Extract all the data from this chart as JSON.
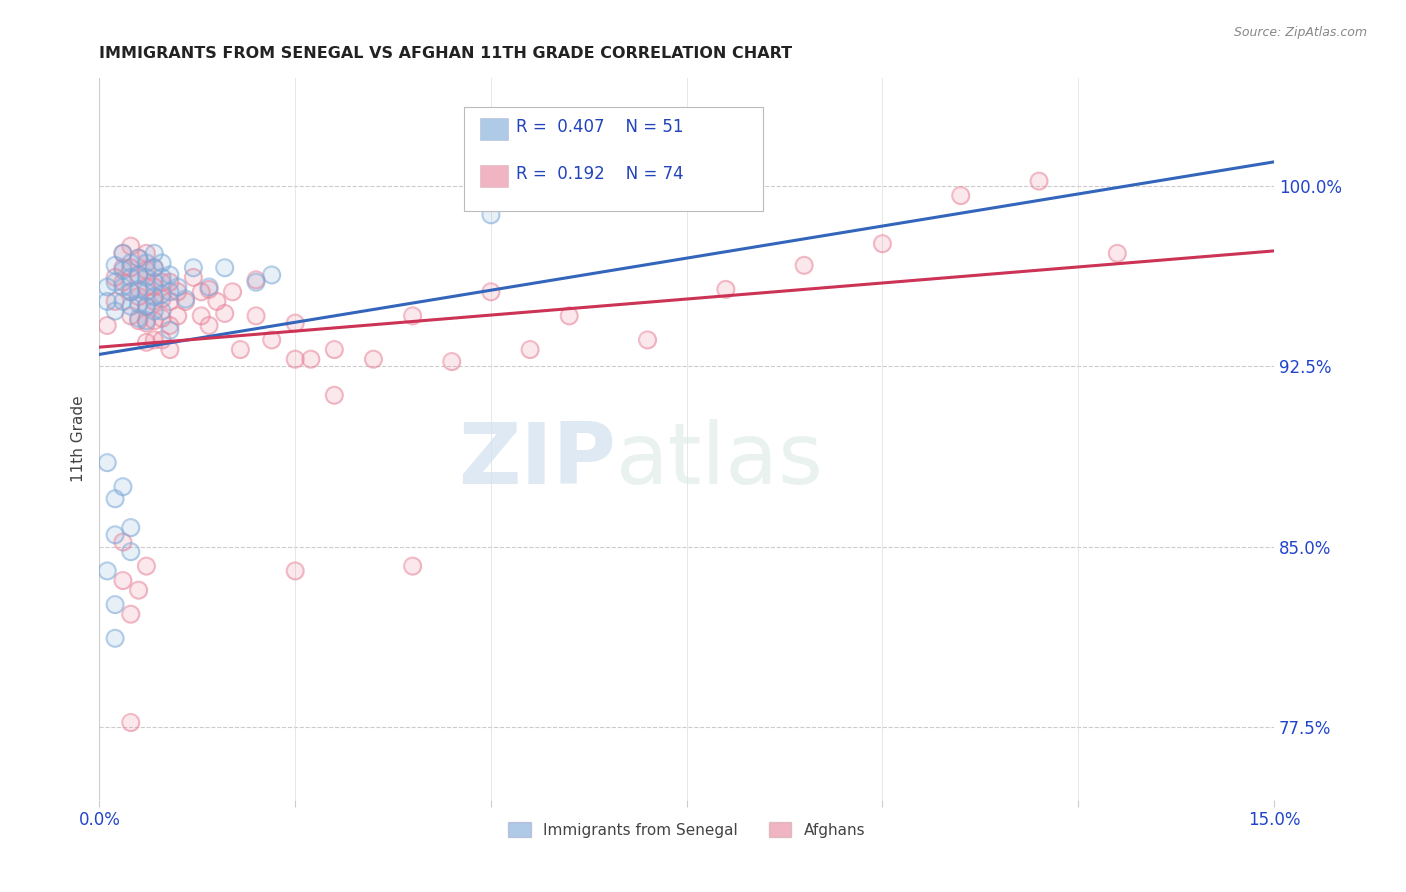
{
  "title": "IMMIGRANTS FROM SENEGAL VS AFGHAN 11TH GRADE CORRELATION CHART",
  "source": "Source: ZipAtlas.com",
  "ylabel": "11th Grade",
  "ytick_labels": [
    "77.5%",
    "85.0%",
    "92.5%",
    "100.0%"
  ],
  "ytick_values": [
    0.775,
    0.85,
    0.925,
    1.0
  ],
  "xlim": [
    0.0,
    0.15
  ],
  "ylim": [
    0.745,
    1.045
  ],
  "legend_blue_r": "0.407",
  "legend_blue_n": "51",
  "legend_pink_r": "0.192",
  "legend_pink_n": "74",
  "legend_label_blue": "Immigrants from Senegal",
  "legend_label_pink": "Afghans",
  "blue_color": "#7aa8d8",
  "pink_color": "#e8839a",
  "blue_line_color": "#3366bb",
  "pink_line_color": "#cc3355",
  "blue_scatter": [
    [
      0.001,
      0.958
    ],
    [
      0.001,
      0.952
    ],
    [
      0.002,
      0.967
    ],
    [
      0.002,
      0.96
    ],
    [
      0.002,
      0.948
    ],
    [
      0.003,
      0.972
    ],
    [
      0.003,
      0.965
    ],
    [
      0.003,
      0.958
    ],
    [
      0.003,
      0.952
    ],
    [
      0.004,
      0.968
    ],
    [
      0.004,
      0.962
    ],
    [
      0.004,
      0.956
    ],
    [
      0.004,
      0.95
    ],
    [
      0.005,
      0.97
    ],
    [
      0.005,
      0.963
    ],
    [
      0.005,
      0.957
    ],
    [
      0.005,
      0.951
    ],
    [
      0.005,
      0.945
    ],
    [
      0.006,
      0.968
    ],
    [
      0.006,
      0.962
    ],
    [
      0.006,
      0.956
    ],
    [
      0.006,
      0.95
    ],
    [
      0.006,
      0.944
    ],
    [
      0.007,
      0.972
    ],
    [
      0.007,
      0.966
    ],
    [
      0.007,
      0.96
    ],
    [
      0.007,
      0.954
    ],
    [
      0.007,
      0.948
    ],
    [
      0.008,
      0.968
    ],
    [
      0.008,
      0.962
    ],
    [
      0.008,
      0.955
    ],
    [
      0.008,
      0.948
    ],
    [
      0.009,
      0.963
    ],
    [
      0.009,
      0.956
    ],
    [
      0.009,
      0.94
    ],
    [
      0.01,
      0.958
    ],
    [
      0.011,
      0.953
    ],
    [
      0.012,
      0.966
    ],
    [
      0.014,
      0.958
    ],
    [
      0.016,
      0.966
    ],
    [
      0.02,
      0.96
    ],
    [
      0.022,
      0.963
    ],
    [
      0.001,
      0.885
    ],
    [
      0.002,
      0.87
    ],
    [
      0.002,
      0.855
    ],
    [
      0.003,
      0.875
    ],
    [
      0.004,
      0.858
    ],
    [
      0.004,
      0.848
    ],
    [
      0.001,
      0.84
    ],
    [
      0.002,
      0.826
    ],
    [
      0.002,
      0.812
    ],
    [
      0.05,
      0.988
    ]
  ],
  "pink_scatter": [
    [
      0.001,
      0.942
    ],
    [
      0.002,
      0.962
    ],
    [
      0.002,
      0.952
    ],
    [
      0.003,
      0.972
    ],
    [
      0.003,
      0.966
    ],
    [
      0.003,
      0.96
    ],
    [
      0.004,
      0.975
    ],
    [
      0.004,
      0.966
    ],
    [
      0.004,
      0.956
    ],
    [
      0.004,
      0.946
    ],
    [
      0.005,
      0.97
    ],
    [
      0.005,
      0.963
    ],
    [
      0.005,
      0.954
    ],
    [
      0.005,
      0.944
    ],
    [
      0.006,
      0.972
    ],
    [
      0.006,
      0.965
    ],
    [
      0.006,
      0.958
    ],
    [
      0.006,
      0.95
    ],
    [
      0.006,
      0.943
    ],
    [
      0.006,
      0.935
    ],
    [
      0.007,
      0.966
    ],
    [
      0.007,
      0.958
    ],
    [
      0.007,
      0.952
    ],
    [
      0.007,
      0.944
    ],
    [
      0.007,
      0.936
    ],
    [
      0.008,
      0.96
    ],
    [
      0.008,
      0.953
    ],
    [
      0.008,
      0.945
    ],
    [
      0.008,
      0.936
    ],
    [
      0.009,
      0.96
    ],
    [
      0.009,
      0.952
    ],
    [
      0.009,
      0.942
    ],
    [
      0.009,
      0.932
    ],
    [
      0.01,
      0.956
    ],
    [
      0.01,
      0.946
    ],
    [
      0.011,
      0.952
    ],
    [
      0.012,
      0.962
    ],
    [
      0.013,
      0.956
    ],
    [
      0.013,
      0.946
    ],
    [
      0.014,
      0.957
    ],
    [
      0.014,
      0.942
    ],
    [
      0.015,
      0.952
    ],
    [
      0.016,
      0.947
    ],
    [
      0.017,
      0.956
    ],
    [
      0.018,
      0.932
    ],
    [
      0.02,
      0.961
    ],
    [
      0.02,
      0.946
    ],
    [
      0.022,
      0.936
    ],
    [
      0.025,
      0.943
    ],
    [
      0.025,
      0.928
    ],
    [
      0.027,
      0.928
    ],
    [
      0.03,
      0.932
    ],
    [
      0.03,
      0.913
    ],
    [
      0.035,
      0.928
    ],
    [
      0.04,
      0.946
    ],
    [
      0.045,
      0.927
    ],
    [
      0.05,
      0.956
    ],
    [
      0.055,
      0.932
    ],
    [
      0.06,
      0.946
    ],
    [
      0.07,
      0.936
    ],
    [
      0.08,
      0.957
    ],
    [
      0.09,
      0.967
    ],
    [
      0.1,
      0.976
    ],
    [
      0.003,
      0.852
    ],
    [
      0.003,
      0.836
    ],
    [
      0.004,
      0.822
    ],
    [
      0.005,
      0.832
    ],
    [
      0.006,
      0.842
    ],
    [
      0.004,
      0.777
    ],
    [
      0.11,
      0.996
    ],
    [
      0.12,
      1.002
    ],
    [
      0.13,
      0.972
    ],
    [
      0.04,
      0.842
    ],
    [
      0.025,
      0.84
    ]
  ],
  "blue_line_x": [
    0.0,
    0.15
  ],
  "blue_line_y": [
    0.93,
    1.01
  ],
  "pink_line_x": [
    0.0,
    0.15
  ],
  "pink_line_y": [
    0.933,
    0.973
  ]
}
